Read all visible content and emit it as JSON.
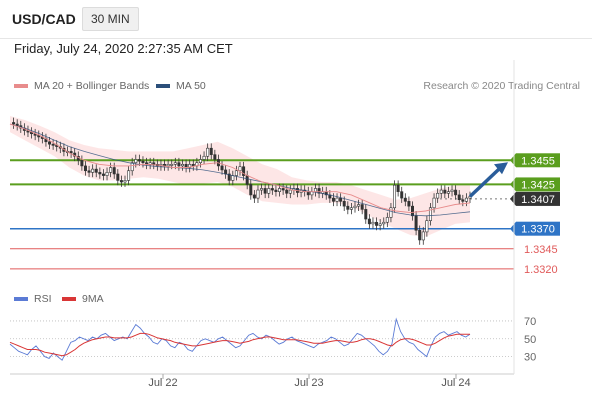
{
  "header": {
    "symbol": "USD/CAD",
    "timeframe": "30 MIN"
  },
  "datetime": "Friday, July 24, 2020 2:27:35 AM CET",
  "legend": {
    "ma20": "MA 20 + Bollinger Bands",
    "ma50": "MA 50",
    "rsi": "RSI",
    "rsi_ma": "9MA"
  },
  "credit": "Research © 2020 Trading Central",
  "colors": {
    "resistance": "#5a9e1e",
    "support": "#2e74c6",
    "target_red": "#e05a5a",
    "ma20": "#e88c8c",
    "ma50": "#2b4f7a",
    "band": "#fde0e0",
    "rsi": "#5b7bd5",
    "rsi_ma": "#d93636",
    "candle": "#333333",
    "arrow": "#2a5d9a"
  },
  "chart_data": [
    {
      "type": "candlestick",
      "x_tick_labels": [
        "Jul 22",
        "Jul 23",
        "Jul 24"
      ],
      "ylim": [
        1.3305,
        1.3515
      ],
      "price_levels": [
        {
          "label": "1.3455",
          "value": 1.3455,
          "kind": "resistance"
        },
        {
          "label": "1.3425",
          "value": 1.3425,
          "kind": "resistance"
        },
        {
          "label": "1.3407",
          "value": 1.3407,
          "kind": "last"
        },
        {
          "label": "1.3370",
          "value": 1.337,
          "kind": "support"
        },
        {
          "label": "1.3345",
          "value": 1.3345,
          "kind": "target"
        },
        {
          "label": "1.3320",
          "value": 1.332,
          "kind": "target"
        }
      ],
      "close_path": [
        1.3502,
        1.35,
        1.3498,
        1.3495,
        1.3492,
        1.349,
        1.3488,
        1.3486,
        1.3484,
        1.3482,
        1.3478,
        1.3475,
        1.3474,
        1.3472,
        1.347,
        1.3466,
        1.3466,
        1.3464,
        1.346,
        1.3455,
        1.3448,
        1.3442,
        1.344,
        1.3444,
        1.344,
        1.3438,
        1.3436,
        1.344,
        1.3446,
        1.3438,
        1.343,
        1.3428,
        1.343,
        1.3442,
        1.3452,
        1.3456,
        1.3454,
        1.3452,
        1.345,
        1.3452,
        1.345,
        1.3448,
        1.345,
        1.3448,
        1.345,
        1.345,
        1.3452,
        1.3448,
        1.345,
        1.3446,
        1.345,
        1.3448,
        1.3452,
        1.3456,
        1.346,
        1.347,
        1.3462,
        1.3456,
        1.3448,
        1.3443,
        1.3438,
        1.343,
        1.3436,
        1.3442,
        1.3447,
        1.3436,
        1.3425,
        1.3412,
        1.3408,
        1.3418,
        1.342,
        1.3414,
        1.342,
        1.3418,
        1.3416,
        1.342,
        1.3418,
        1.3414,
        1.3418,
        1.342,
        1.3415,
        1.3418,
        1.3416,
        1.3412,
        1.3416,
        1.342,
        1.3414,
        1.3416,
        1.3412,
        1.3408,
        1.3404,
        1.3408,
        1.3404,
        1.3398,
        1.3394,
        1.3396,
        1.3398,
        1.34,
        1.3394,
        1.3382,
        1.3376,
        1.3378,
        1.3374,
        1.3376,
        1.3378,
        1.3384,
        1.3396,
        1.3424,
        1.3416,
        1.3408,
        1.3404,
        1.3398,
        1.3386,
        1.3368,
        1.3356,
        1.3366,
        1.338,
        1.3396,
        1.3408,
        1.3414,
        1.3418,
        1.3414,
        1.3416,
        1.3418,
        1.3412,
        1.3406,
        1.3404,
        1.3408,
        1.341
      ],
      "ma20_path": [
        1.35,
        1.3494,
        1.3486,
        1.3476,
        1.3464,
        1.3455,
        1.345,
        1.3448,
        1.3448,
        1.345,
        1.3449,
        1.3446,
        1.3446,
        1.345,
        1.3452,
        1.3446,
        1.3436,
        1.3428,
        1.3424,
        1.3418,
        1.3416,
        1.3416,
        1.3416,
        1.3412,
        1.3404,
        1.3396,
        1.3392,
        1.339,
        1.3392,
        1.3396,
        1.34,
        1.3402
      ],
      "ma50_path": [
        1.35,
        1.3495,
        1.3488,
        1.348,
        1.3472,
        1.3466,
        1.3461,
        1.3456,
        1.3452,
        1.3449,
        1.3447,
        1.3446,
        1.3445,
        1.3443,
        1.344,
        1.3436,
        1.3432,
        1.3428,
        1.3424,
        1.342,
        1.3417,
        1.3414,
        1.341,
        1.3405,
        1.34,
        1.3395,
        1.339,
        1.3387,
        1.3386,
        1.3387,
        1.3389,
        1.3391
      ],
      "band_upper": [
        1.351,
        1.3505,
        1.3498,
        1.349,
        1.348,
        1.3474,
        1.347,
        1.3468,
        1.3466,
        1.3466,
        1.3466,
        1.3466,
        1.347,
        1.3474,
        1.3478,
        1.347,
        1.346,
        1.345,
        1.3444,
        1.3434,
        1.343,
        1.3428,
        1.3428,
        1.3424,
        1.3418,
        1.3412,
        1.3406,
        1.3408,
        1.3414,
        1.342,
        1.3424,
        1.3426
      ],
      "band_lower": [
        1.349,
        1.348,
        1.347,
        1.346,
        1.3446,
        1.3436,
        1.343,
        1.343,
        1.3432,
        1.3434,
        1.3432,
        1.3428,
        1.3424,
        1.3426,
        1.3428,
        1.3422,
        1.3412,
        1.3404,
        1.3402,
        1.34,
        1.34,
        1.3402,
        1.3402,
        1.3398,
        1.3388,
        1.3378,
        1.337,
        1.3362,
        1.336,
        1.3368,
        1.3376,
        1.3378
      ],
      "projection": {
        "from": 1.341,
        "to": 1.3455
      }
    },
    {
      "type": "line",
      "title": "RSI",
      "ylim": [
        15,
        80
      ],
      "y_tick_labels": [
        "70",
        "50",
        "30"
      ],
      "y_ticks": [
        70,
        50,
        30
      ],
      "series": [
        {
          "name": "RSI",
          "values": [
            44,
            40,
            36,
            34,
            32,
            38,
            42,
            36,
            30,
            28,
            34,
            30,
            26,
            36,
            46,
            48,
            52,
            50,
            48,
            52,
            50,
            54,
            56,
            52,
            48,
            50,
            52,
            50,
            58,
            66,
            62,
            56,
            52,
            46,
            44,
            50,
            48,
            42,
            40,
            46,
            44,
            38,
            36,
            42,
            48,
            50,
            48,
            46,
            50,
            52,
            48,
            44,
            40,
            42,
            48,
            54,
            56,
            52,
            50,
            54,
            52,
            48,
            44,
            46,
            50,
            52,
            48,
            46,
            44,
            42,
            40,
            44,
            46,
            48,
            52,
            50,
            46,
            42,
            44,
            50,
            56,
            54,
            50,
            46,
            42,
            36,
            32,
            36,
            44,
            72,
            58,
            50,
            46,
            44,
            38,
            34,
            30,
            42,
            52,
            56,
            58,
            54,
            56,
            58,
            54,
            52,
            55
          ]
        },
        {
          "name": "9MA",
          "values": [
            46,
            44,
            42,
            40,
            38,
            38,
            38,
            37,
            35,
            34,
            33,
            32,
            31,
            32,
            35,
            38,
            42,
            45,
            47,
            49,
            50,
            51,
            52,
            52,
            51,
            51,
            51,
            51,
            52,
            54,
            56,
            56,
            55,
            53,
            51,
            50,
            49,
            48,
            46,
            45,
            44,
            43,
            42,
            42,
            43,
            44,
            45,
            46,
            47,
            48,
            48,
            47,
            46,
            45,
            46,
            47,
            49,
            50,
            51,
            52,
            52,
            51,
            50,
            49,
            49,
            49,
            49,
            48,
            47,
            46,
            45,
            45,
            45,
            46,
            47,
            48,
            48,
            47,
            46,
            46,
            47,
            49,
            50,
            50,
            49,
            47,
            45,
            43,
            42,
            46,
            49,
            50,
            50,
            49,
            47,
            45,
            43,
            43,
            45,
            48,
            51,
            53,
            54,
            55,
            55,
            55,
            55
          ]
        }
      ],
      "x_tick_labels": [
        "Jul 22",
        "Jul 23",
        "Jul 24"
      ]
    }
  ]
}
